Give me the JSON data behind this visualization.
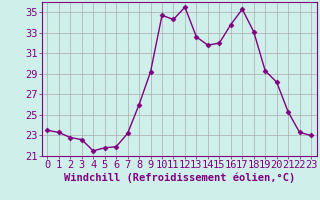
{
  "x": [
    0,
    1,
    2,
    3,
    4,
    5,
    6,
    7,
    8,
    9,
    10,
    11,
    12,
    13,
    14,
    15,
    16,
    17,
    18,
    19,
    20,
    21,
    22,
    23
  ],
  "y": [
    23.5,
    23.3,
    22.8,
    22.6,
    21.5,
    21.8,
    21.9,
    23.2,
    26.0,
    29.2,
    34.7,
    34.3,
    35.5,
    32.6,
    31.8,
    32.0,
    33.8,
    35.3,
    33.1,
    29.3,
    28.2,
    25.3,
    23.3,
    23.0
  ],
  "line_color": "#800080",
  "marker": "D",
  "marker_size": 2.5,
  "bg_color": "#cff0ea",
  "grid_color": "#aaaaaa",
  "xlabel": "Windchill (Refroidissement éolien,°C)",
  "ylabel": "",
  "ylim": [
    21,
    36
  ],
  "yticks": [
    21,
    23,
    25,
    27,
    29,
    31,
    33,
    35
  ],
  "xlim": [
    -0.5,
    23.5
  ],
  "xticks": [
    0,
    1,
    2,
    3,
    4,
    5,
    6,
    7,
    8,
    9,
    10,
    11,
    12,
    13,
    14,
    15,
    16,
    17,
    18,
    19,
    20,
    21,
    22,
    23
  ],
  "xlabel_fontsize": 7.5,
  "tick_fontsize": 7.5,
  "line_width": 1.0
}
